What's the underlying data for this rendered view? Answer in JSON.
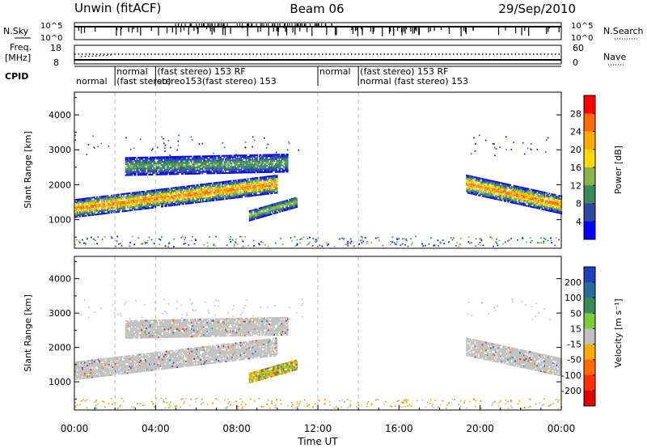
{
  "header": {
    "station": "Unwin (fitACF)",
    "beam": "Beam 06",
    "date": "29/Sep/2010"
  },
  "top_panels": {
    "nsky_label": "N.Sky",
    "nsky_ticks": [
      "10^5",
      "10^0"
    ],
    "nsearch_label": "N.Search",
    "freq_label": "Freq.",
    "freq_unit": "[MHz]",
    "freq_ticks": [
      "18",
      "8"
    ],
    "nave_ticks": [
      "60",
      "0"
    ],
    "nave_label": "Nave",
    "cpid_label": "CPID",
    "cpid_segments": [
      {
        "start_hour": 0.0,
        "end_hour": 2.0,
        "line1": "",
        "line2": "normal"
      },
      {
        "start_hour": 2.0,
        "end_hour": 4.0,
        "line1": "normal",
        "line2": "(fast stereo)"
      },
      {
        "start_hour": 4.0,
        "end_hour": 12.0,
        "line1": "(fast stereo)  153 RF",
        "line2": "stereo153(fast stereo)  153"
      },
      {
        "start_hour": 12.0,
        "end_hour": 14.0,
        "line1": "normal",
        "line2": ""
      },
      {
        "start_hour": 14.0,
        "end_hour": 24.0,
        "line1": "(fast stereo)  153 RF",
        "line2": "normal (fast stereo)  153"
      }
    ]
  },
  "chart_data": [
    {
      "type": "heatmap",
      "panel": "power",
      "ylabel": "Slant Range [km]",
      "xlabel": "Time UT",
      "x_tick_labels": [
        "00:00",
        "04:00",
        "08:00",
        "12:00",
        "16:00",
        "20:00",
        "00:00"
      ],
      "x_ticks_hours": [
        0,
        4,
        8,
        12,
        16,
        20,
        24
      ],
      "xlim_hours": [
        0,
        24
      ],
      "ylim_km": [
        180,
        4650
      ],
      "y_ticks": [
        1000,
        2000,
        3000,
        4000
      ],
      "y_tick_labels": [
        "1000",
        "2000",
        "3000",
        "4000"
      ],
      "colorbar": {
        "label": "Power [dB]",
        "tick_labels": [
          "28",
          "24",
          "20",
          "16",
          "12",
          "8",
          "4"
        ],
        "colors": [
          "#ff0000",
          "#ff6a00",
          "#ffaa00",
          "#ffd800",
          "#8ab44a",
          "#3a8a5a",
          "#2a4aa0",
          "#0000ff"
        ]
      },
      "echo_regions": [
        {
          "name": "main band",
          "start_hour": 0.0,
          "end_hour": 10.0,
          "center_km_start": 1300,
          "center_km_end": 2000,
          "width_km": 500,
          "peak_db": 28
        },
        {
          "name": "upper patch",
          "start_hour": 2.5,
          "end_hour": 10.5,
          "center_km_start": 2500,
          "center_km_end": 2600,
          "width_km": 500,
          "peak_db": 12
        },
        {
          "name": "lower patch",
          "start_hour": 8.6,
          "end_hour": 11.0,
          "center_km_start": 1100,
          "center_km_end": 1500,
          "width_km": 300,
          "peak_db": 16
        },
        {
          "name": "evening band",
          "start_hour": 19.3,
          "end_hour": 24.0,
          "center_km_start": 2000,
          "center_km_end": 1400,
          "width_km": 500,
          "peak_db": 28
        }
      ]
    },
    {
      "type": "heatmap",
      "panel": "velocity",
      "ylabel": "Slant Range [km]",
      "xlabel": "Time UT",
      "x_tick_labels": [
        "00:00",
        "04:00",
        "08:00",
        "12:00",
        "16:00",
        "20:00",
        "00:00"
      ],
      "x_ticks_hours": [
        0,
        4,
        8,
        12,
        16,
        20,
        24
      ],
      "xlim_hours": [
        0,
        24
      ],
      "ylim_km": [
        180,
        4650
      ],
      "y_ticks": [
        1000,
        2000,
        3000,
        4000
      ],
      "y_tick_labels": [
        "1000",
        "2000",
        "3000",
        "4000"
      ],
      "colorbar": {
        "label": "Velocity [m s⁻¹]",
        "tick_labels": [
          "200",
          "100",
          "50",
          "15",
          "-15",
          "-50",
          "-100",
          "-200"
        ],
        "colors": [
          "#2040c0",
          "#2a6a9a",
          "#3a8a5a",
          "#7acc3a",
          "#c0c0c0",
          "#ffaa00",
          "#ff6a00",
          "#ff3000",
          "#e00000"
        ]
      },
      "echo_regions": [
        {
          "name": "main band",
          "start_hour": 0.0,
          "end_hour": 10.0,
          "center_km_start": 1300,
          "center_km_end": 2000,
          "width_km": 500,
          "velocity": "0"
        },
        {
          "name": "upper patch",
          "start_hour": 2.5,
          "end_hour": 10.5,
          "center_km_start": 2500,
          "center_km_end": 2600,
          "width_km": 500,
          "velocity": "0"
        },
        {
          "name": "lower patch",
          "start_hour": 8.6,
          "end_hour": 11.0,
          "center_km_start": 1100,
          "center_km_end": 1500,
          "width_km": 300,
          "velocity": "-50 to 50"
        },
        {
          "name": "evening band",
          "start_hour": 19.3,
          "end_hour": 24.0,
          "center_km_start": 2000,
          "center_km_end": 1400,
          "width_km": 500,
          "velocity": "0"
        }
      ]
    }
  ]
}
